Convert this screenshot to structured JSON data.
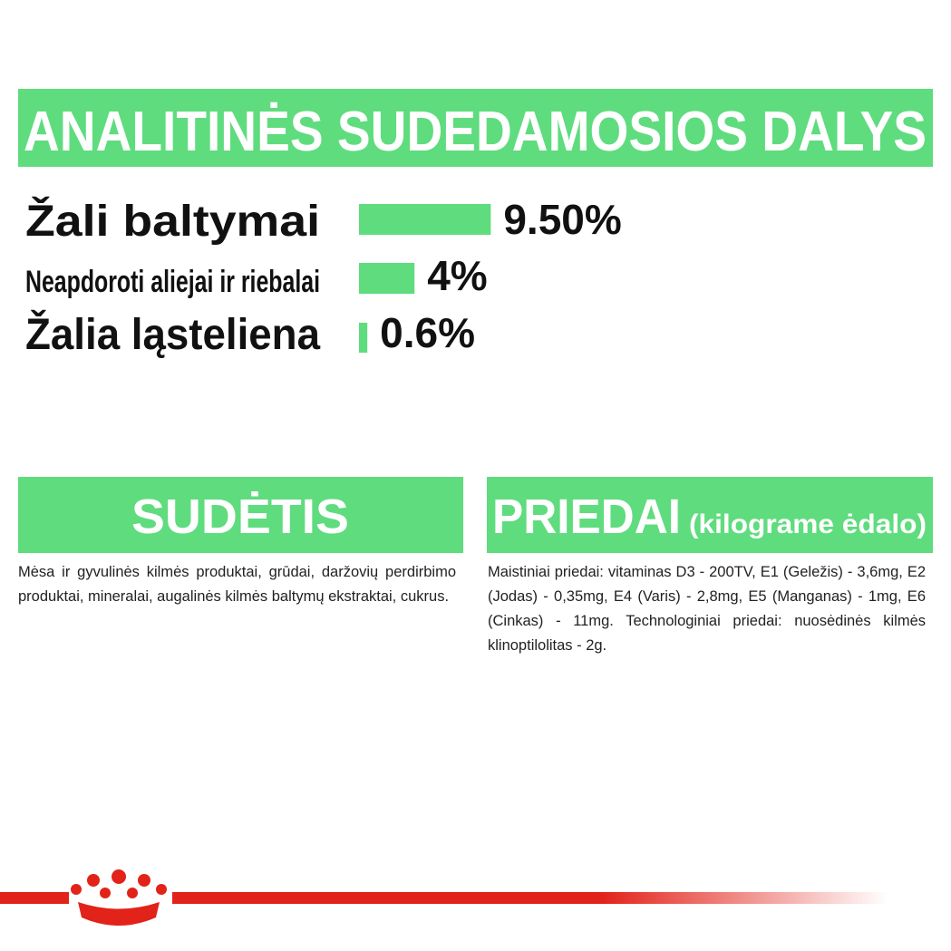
{
  "chart_data": {
    "type": "bar",
    "orientation": "horizontal",
    "title": "ANALITINĖS SUDEDAMOSIOS DALYS",
    "categories": [
      "Žali baltymai",
      "Neapdoroti aliejai ir riebalai",
      "Žalia ląsteliena"
    ],
    "values": [
      9.5,
      4,
      0.6
    ],
    "value_labels": [
      "9.50%",
      "4%",
      "0.6%"
    ],
    "color": "#5fdc7e"
  },
  "composition": {
    "title": "SUDĖTIS",
    "text": "Mėsa ir gyvulinės kilmės produktai, grūdai, daržovių perdirbimo produktai, mineralai, augalinės kilmės baltymų ekstraktai, cukrus."
  },
  "additives": {
    "title": "PRIEDAI",
    "subtitle": "(kilograme ėdalo)",
    "text": "Maistiniai priedai: vitaminas D3 - 200TV, E1 (Geležis) - 3,6mg, E2 (Jodas) - 0,35mg, E4 (Varis) - 2,8mg, E5 (Manganas) - 1mg, E6 (Cinkas) - 11mg. Technologiniai priedai: nuosėdinės kilmės klinoptilolitas - 2g."
  }
}
